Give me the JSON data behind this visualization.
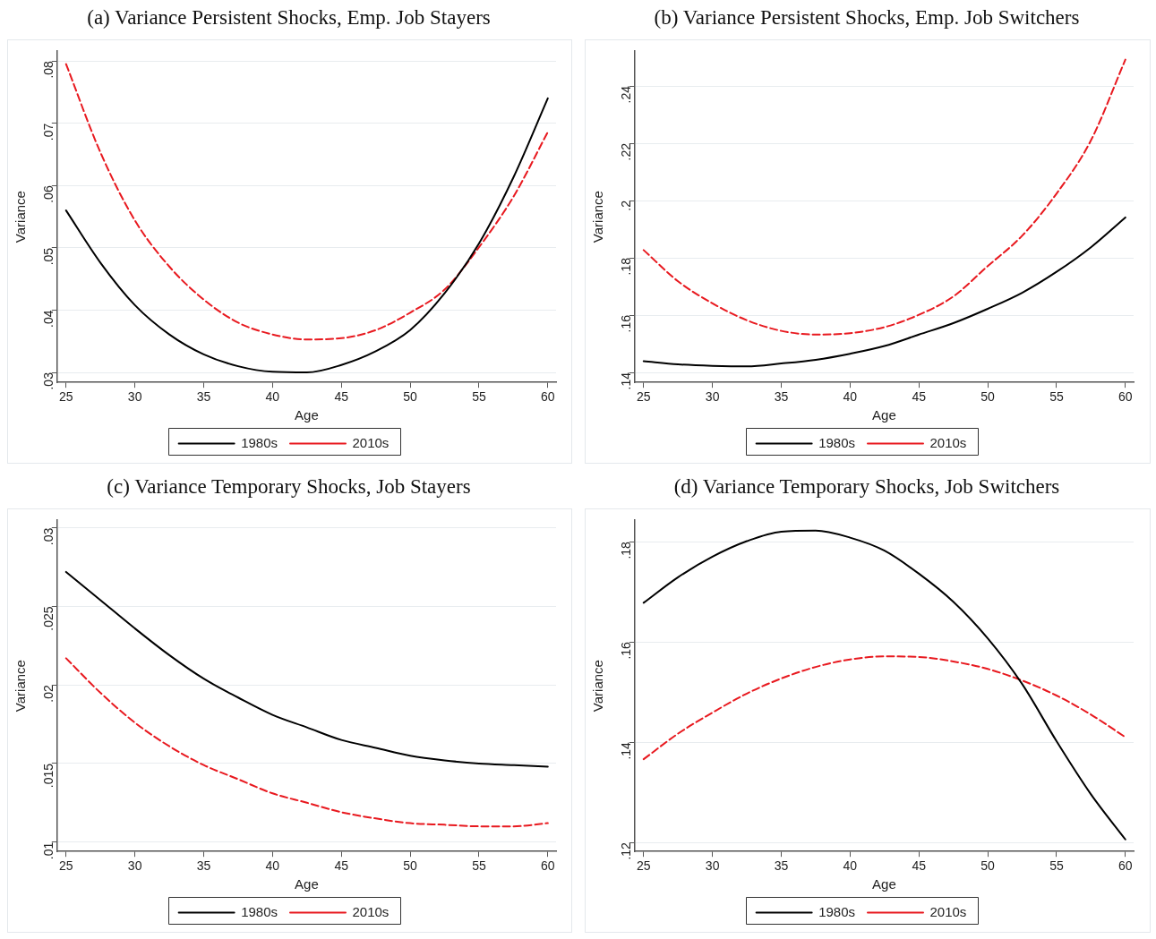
{
  "chart_data": [
    {
      "type": "line",
      "title": "(a) Variance Persistent Shocks, Emp. Job Stayers",
      "xlabel": "Age",
      "ylabel": "Variance",
      "grid": "y",
      "legend": "bottom",
      "marker": "none",
      "x": [
        25,
        27.5,
        30,
        32.5,
        35,
        37.5,
        40,
        42.5,
        45,
        47.5,
        50,
        52.5,
        55,
        57.5,
        60
      ],
      "xlim": [
        24.35,
        60.6
      ],
      "xticks": [
        25,
        30,
        35,
        40,
        45,
        50,
        55,
        60
      ],
      "ylim": [
        0.0284,
        0.0816
      ],
      "yticks": [
        {
          "value": 0.03,
          "label": ".03"
        },
        {
          "value": 0.04,
          "label": ".04"
        },
        {
          "value": 0.05,
          "label": ".05"
        },
        {
          "value": 0.06,
          "label": ".06"
        },
        {
          "value": 0.07,
          "label": ".07"
        },
        {
          "value": 0.08,
          "label": ".08"
        }
      ],
      "series": [
        {
          "name": "1980s",
          "color": "#000000",
          "line_style": "solid",
          "values": [
            0.056,
            0.0476,
            0.0408,
            0.0361,
            0.0329,
            0.031,
            0.0301,
            0.03,
            0.0312,
            0.0334,
            0.0368,
            0.0427,
            0.0507,
            0.0613,
            0.074
          ]
        },
        {
          "name": "2010s",
          "color": "#e8191f",
          "line_style": "dashed",
          "values": [
            0.0795,
            0.0653,
            0.0544,
            0.047,
            0.0417,
            0.038,
            0.0361,
            0.0353,
            0.0355,
            0.0368,
            0.0396,
            0.0433,
            0.0501,
            0.0582,
            0.0686
          ]
        }
      ]
    },
    {
      "type": "line",
      "title": "(b) Variance Persistent Shocks, Emp. Job Switchers",
      "xlabel": "Age",
      "ylabel": "Variance",
      "grid": "y",
      "legend": "bottom",
      "marker": "none",
      "x": [
        25,
        27.5,
        30,
        32.5,
        35,
        37.5,
        40,
        42.5,
        45,
        47.5,
        50,
        52.5,
        55,
        57.5,
        60
      ],
      "xlim": [
        24.35,
        60.6
      ],
      "xticks": [
        25,
        30,
        35,
        40,
        45,
        50,
        55,
        60
      ],
      "ylim": [
        0.1365,
        0.2522
      ],
      "yticks": [
        {
          "value": 0.14,
          "label": ".14"
        },
        {
          "value": 0.16,
          "label": ".16"
        },
        {
          "value": 0.18,
          "label": ".18"
        },
        {
          "value": 0.2,
          "label": ".2"
        },
        {
          "value": 0.22,
          "label": ".22"
        },
        {
          "value": 0.24,
          "label": ".24"
        }
      ],
      "series": [
        {
          "name": "1980s",
          "color": "#000000",
          "line_style": "solid",
          "values": [
            0.1439,
            0.1428,
            0.1423,
            0.1421,
            0.1431,
            0.1444,
            0.1465,
            0.1492,
            0.1532,
            0.1572,
            0.1622,
            0.1678,
            0.1751,
            0.1837,
            0.1941
          ]
        },
        {
          "name": "2010s",
          "color": "#e8191f",
          "line_style": "dashed",
          "values": [
            0.1827,
            0.1718,
            0.1641,
            0.1582,
            0.1545,
            0.1532,
            0.1537,
            0.1558,
            0.1601,
            0.1665,
            0.1771,
            0.1877,
            0.2024,
            0.221,
            0.2492
          ]
        }
      ]
    },
    {
      "type": "line",
      "title": "(c) Variance Temporary Shocks, Job Stayers",
      "xlabel": "Age",
      "ylabel": "Variance",
      "grid": "y",
      "legend": "bottom",
      "marker": "none",
      "x": [
        25,
        27.5,
        30,
        32.5,
        35,
        37.5,
        40,
        42.5,
        45,
        47.5,
        50,
        52.5,
        55,
        57.5,
        60
      ],
      "xlim": [
        24.35,
        60.6
      ],
      "xticks": [
        25,
        30,
        35,
        40,
        45,
        50,
        55,
        60
      ],
      "ylim": [
        0.0094,
        0.0305
      ],
      "yticks": [
        {
          "value": 0.01,
          "label": ".01"
        },
        {
          "value": 0.015,
          "label": ".015"
        },
        {
          "value": 0.02,
          "label": ".02"
        },
        {
          "value": 0.025,
          "label": ".025"
        },
        {
          "value": 0.03,
          "label": ".03"
        }
      ],
      "series": [
        {
          "name": "1980s",
          "color": "#000000",
          "line_style": "solid",
          "values": [
            0.0272,
            0.0254,
            0.0236,
            0.0219,
            0.0204,
            0.0192,
            0.0181,
            0.0173,
            0.0165,
            0.016,
            0.0155,
            0.0152,
            0.015,
            0.0149,
            0.0148
          ]
        },
        {
          "name": "2010s",
          "color": "#e8191f",
          "line_style": "dashed",
          "values": [
            0.0217,
            0.0195,
            0.0176,
            0.0161,
            0.0149,
            0.014,
            0.0131,
            0.0125,
            0.0119,
            0.0115,
            0.0112,
            0.0111,
            0.011,
            0.011,
            0.0112
          ]
        }
      ]
    },
    {
      "type": "line",
      "title": "(d) Variance Temporary Shocks, Job Switchers",
      "xlabel": "Age",
      "ylabel": "Variance",
      "grid": "y",
      "legend": "bottom",
      "marker": "none",
      "x": [
        25,
        27.5,
        30,
        32.5,
        35,
        37.5,
        40,
        42.5,
        45,
        47.5,
        50,
        52.5,
        55,
        57.5,
        60
      ],
      "xlim": [
        24.35,
        60.6
      ],
      "xticks": [
        25,
        30,
        35,
        40,
        45,
        50,
        55,
        60
      ],
      "ylim": [
        0.1182,
        0.1843
      ],
      "yticks": [
        {
          "value": 0.12,
          "label": ".12"
        },
        {
          "value": 0.14,
          "label": ".14"
        },
        {
          "value": 0.16,
          "label": ".16"
        },
        {
          "value": 0.18,
          "label": ".18"
        }
      ],
      "series": [
        {
          "name": "1980s",
          "color": "#000000",
          "line_style": "solid",
          "values": [
            0.1678,
            0.1729,
            0.177,
            0.1801,
            0.182,
            0.1822,
            0.1808,
            0.1782,
            0.1736,
            0.168,
            0.1607,
            0.1516,
            0.1402,
            0.1296,
            0.1206
          ]
        },
        {
          "name": "2010s",
          "color": "#e8191f",
          "line_style": "dashed",
          "values": [
            0.1366,
            0.1417,
            0.1459,
            0.1497,
            0.1527,
            0.155,
            0.1565,
            0.1571,
            0.157,
            0.1561,
            0.1546,
            0.1523,
            0.1493,
            0.1455,
            0.141
          ]
        }
      ]
    }
  ]
}
